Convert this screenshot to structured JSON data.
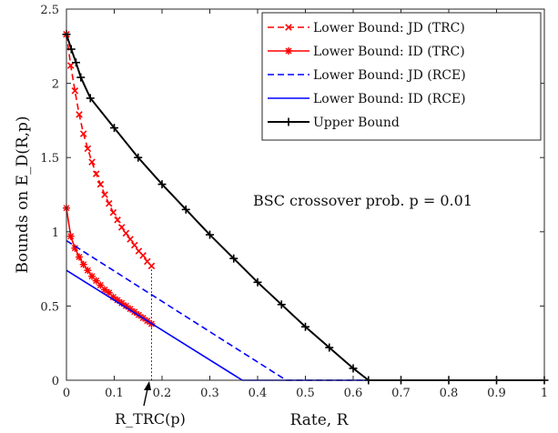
{
  "chart_data": {
    "type": "line",
    "xlabel": "Rate, R",
    "ylabel": "Bounds on E_D(R,p)",
    "xlim": [
      0,
      1
    ],
    "ylim": [
      0,
      2.5
    ],
    "x_ticks": [
      "0",
      "0.1",
      "0.2",
      "0.3",
      "0.4",
      "0.5",
      "0.6",
      "0.7",
      "0.8",
      "0.9",
      "1"
    ],
    "y_ticks": [
      "0",
      "0.5",
      "1",
      "1.5",
      "2",
      "2.5"
    ],
    "grid": false,
    "legend_position": "top-right",
    "annotation": "BSC crossover prob. p = 0.01",
    "rtrc_label": "R_TRC(p)",
    "rtrc_value": 0.178,
    "series": [
      {
        "name": "Lower Bound: JD (TRC)",
        "color": "#ff0000",
        "style": "dashed",
        "marker": "x",
        "x": [
          0,
          0.0089,
          0.0178,
          0.0267,
          0.0356,
          0.0445,
          0.0534,
          0.0623,
          0.0712,
          0.0801,
          0.089,
          0.0979,
          0.1068,
          0.1157,
          0.1246,
          0.1335,
          0.1424,
          0.1513,
          0.1602,
          0.1691,
          0.178
        ],
        "y": [
          2.33,
          2.12,
          1.95,
          1.79,
          1.66,
          1.56,
          1.47,
          1.39,
          1.32,
          1.25,
          1.19,
          1.13,
          1.08,
          1.03,
          0.99,
          0.95,
          0.91,
          0.87,
          0.84,
          0.8,
          0.77
        ]
      },
      {
        "name": "Lower Bound: ID (TRC)",
        "color": "#ff0000",
        "style": "solid",
        "marker": "*",
        "x": [
          0,
          0.0089,
          0.0178,
          0.0267,
          0.0356,
          0.0445,
          0.0534,
          0.0623,
          0.0712,
          0.0801,
          0.089,
          0.0979,
          0.1068,
          0.1157,
          0.1246,
          0.1335,
          0.1424,
          0.1513,
          0.1602,
          0.1691,
          0.178
        ],
        "y": [
          1.16,
          0.97,
          0.89,
          0.83,
          0.78,
          0.74,
          0.7,
          0.67,
          0.64,
          0.61,
          0.59,
          0.56,
          0.54,
          0.52,
          0.5,
          0.48,
          0.46,
          0.44,
          0.42,
          0.4,
          0.38
        ]
      },
      {
        "name": "Lower Bound: JD (RCE)",
        "color": "#0000ff",
        "style": "dashed",
        "marker": "none",
        "x": [
          0,
          0.46,
          0.64
        ],
        "y": [
          0.94,
          0,
          0
        ]
      },
      {
        "name": "Lower Bound: ID (RCE)",
        "color": "#0000ff",
        "style": "solid",
        "marker": "none",
        "x": [
          0,
          0.368,
          0.64
        ],
        "y": [
          0.74,
          0,
          0
        ]
      },
      {
        "name": "Upper Bound",
        "color": "#000000",
        "style": "solid",
        "marker": "+",
        "x": [
          0,
          0.01,
          0.02,
          0.03,
          0.05,
          0.1,
          0.15,
          0.2,
          0.25,
          0.3,
          0.35,
          0.4,
          0.45,
          0.5,
          0.55,
          0.6,
          0.632,
          0.7,
          0.8,
          0.9,
          1.0
        ],
        "y": [
          2.33,
          2.23,
          2.14,
          2.04,
          1.9,
          1.7,
          1.5,
          1.32,
          1.15,
          0.98,
          0.82,
          0.66,
          0.51,
          0.36,
          0.22,
          0.08,
          0,
          0,
          0,
          0,
          0
        ]
      }
    ]
  }
}
